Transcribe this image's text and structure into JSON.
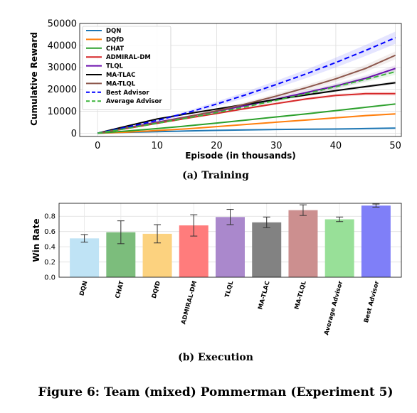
{
  "figure_caption": "Figure 6: Team (mixed) Pommerman (Experiment 5)",
  "chart_data": [
    {
      "type": "line",
      "caption": "(a)  Training",
      "xlabel": "Episode (in thousands)",
      "ylabel": "Cumulative Reward",
      "xlim": [
        -3,
        51
      ],
      "ylim": [
        -1500,
        50000
      ],
      "xticks": [
        0,
        10,
        20,
        30,
        40,
        50
      ],
      "yticks": [
        0,
        10000,
        20000,
        30000,
        40000,
        50000
      ],
      "grid": true,
      "legend_position": "upper-left",
      "x": [
        0,
        5,
        10,
        15,
        20,
        25,
        30,
        35,
        40,
        45,
        50
      ],
      "series": [
        {
          "name": "DQN",
          "color": "#1f77b4",
          "dash": "solid",
          "band": 500,
          "values": [
            0,
            400,
            700,
            1000,
            1300,
            1500,
            1700,
            1800,
            1900,
            2100,
            2300
          ]
        },
        {
          "name": "DQfD",
          "color": "#ff7f0e",
          "dash": "solid",
          "band": 500,
          "values": [
            0,
            500,
            1200,
            2000,
            3000,
            4000,
            5000,
            6000,
            7000,
            8000,
            8800
          ]
        },
        {
          "name": "CHAT",
          "color": "#2ca02c",
          "dash": "solid",
          "band": 500,
          "values": [
            0,
            1000,
            2100,
            3300,
            4600,
            6000,
            7400,
            8800,
            10300,
            11800,
            13300
          ]
        },
        {
          "name": "ADMIRAL-DM",
          "color": "#d62728",
          "dash": "solid",
          "band": 900,
          "values": [
            0,
            2200,
            4500,
            6800,
            9000,
            11300,
            13500,
            15600,
            17200,
            18000,
            18000
          ]
        },
        {
          "name": "TLQL",
          "color": "#6a0dad",
          "dash": "solid",
          "band": 1500,
          "values": [
            0,
            2500,
            5000,
            7500,
            10000,
            12700,
            15500,
            18500,
            21500,
            25000,
            29500
          ]
        },
        {
          "name": "MA-TLAC",
          "color": "#000000",
          "dash": "solid",
          "band": 700,
          "values": [
            0,
            3300,
            6500,
            8800,
            11000,
            13200,
            15400,
            17400,
            19400,
            21200,
            23000
          ]
        },
        {
          "name": "MA-TLQL",
          "color": "#8c564b",
          "dash": "solid",
          "band": 1800,
          "values": [
            0,
            2400,
            4800,
            7400,
            10200,
            13400,
            16900,
            20700,
            24800,
            29500,
            35500
          ]
        },
        {
          "name": "Best Advisor",
          "color": "#0000ff",
          "dash": "dashed",
          "band": 2800,
          "values": [
            0,
            2800,
            5800,
            9300,
            13300,
            17600,
            22200,
            27000,
            32200,
            37700,
            43500
          ]
        },
        {
          "name": "Average Advisor",
          "color": "#3cb43c",
          "dash": "dashed",
          "band": 1400,
          "values": [
            0,
            2200,
            4500,
            6900,
            9400,
            12100,
            15000,
            18000,
            21200,
            24500,
            28000
          ]
        }
      ]
    },
    {
      "type": "bar",
      "caption": "(b)  Execution",
      "xlabel": "",
      "ylabel": "Win Rate",
      "ylim": [
        0,
        0.97
      ],
      "yticks": [
        0.0,
        0.2,
        0.4,
        0.6,
        0.8
      ],
      "ytick_labels": [
        "0.0",
        "0.2",
        "0.4",
        "0.6",
        "0.8"
      ],
      "grid": true,
      "categories": [
        "DQN",
        "CHAT",
        "DQfD",
        "ADMIRAL-DM",
        "TLQL",
        "MA-TLAC",
        "MA-TLQL",
        "Average Advisor",
        "Best Advisor"
      ],
      "values": [
        0.51,
        0.59,
        0.57,
        0.68,
        0.79,
        0.72,
        0.88,
        0.76,
        0.94
      ],
      "errors": [
        0.05,
        0.15,
        0.12,
        0.14,
        0.1,
        0.07,
        0.07,
        0.03,
        0.02
      ],
      "colors": [
        "#bfe3f5",
        "#7cbd7c",
        "#fcd27f",
        "#ff7c7c",
        "#aa88cc",
        "#828282",
        "#cc8f8f",
        "#98e098",
        "#7f7ff8"
      ]
    }
  ]
}
